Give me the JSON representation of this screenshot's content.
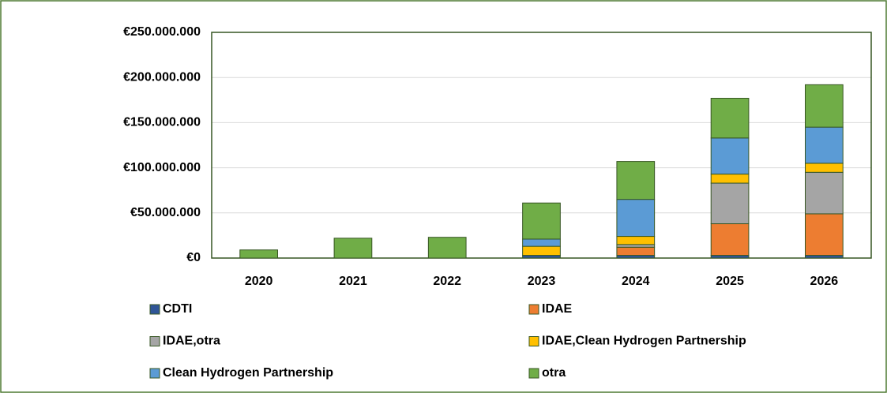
{
  "chart_data": {
    "type": "stacked_bar",
    "categories": [
      "2020",
      "2021",
      "2022",
      "2023",
      "2024",
      "2025",
      "2026"
    ],
    "series": [
      {
        "name": "CDTI",
        "color": "#2f5597",
        "values": [
          0,
          0,
          0,
          3000000,
          3000000,
          3000000,
          3000000
        ]
      },
      {
        "name": "IDAE",
        "color": "#ed7d31",
        "values": [
          0,
          0,
          0,
          0,
          9000000,
          35000000,
          46000000
        ]
      },
      {
        "name": "IDAE,otra",
        "color": "#a5a5a5",
        "values": [
          0,
          0,
          0,
          0,
          3000000,
          45000000,
          46000000
        ]
      },
      {
        "name": "IDAE,Clean Hydrogen Partnership",
        "color": "#ffc000",
        "values": [
          0,
          0,
          0,
          10000000,
          9000000,
          10000000,
          10000000
        ]
      },
      {
        "name": "Clean Hydrogen Partnership",
        "color": "#5b9bd5",
        "values": [
          0,
          0,
          0,
          8000000,
          41000000,
          40000000,
          40000000
        ]
      },
      {
        "name": "otra",
        "color": "#70ad47",
        "values": [
          9000000,
          22000000,
          23000000,
          40000000,
          42000000,
          44000000,
          47000000
        ]
      }
    ],
    "ylim": [
      0,
      250000000
    ],
    "yticks": [
      {
        "value": 0,
        "label": "€0"
      },
      {
        "value": 50000000,
        "label": "€50.000.000"
      },
      {
        "value": 100000000,
        "label": "€100.000.000"
      },
      {
        "value": 150000000,
        "label": "€150.000.000"
      },
      {
        "value": 200000000,
        "label": "€200.000.000"
      },
      {
        "value": 250000000,
        "label": "€250.000.000"
      }
    ],
    "grid": true,
    "legend": "bottom"
  }
}
